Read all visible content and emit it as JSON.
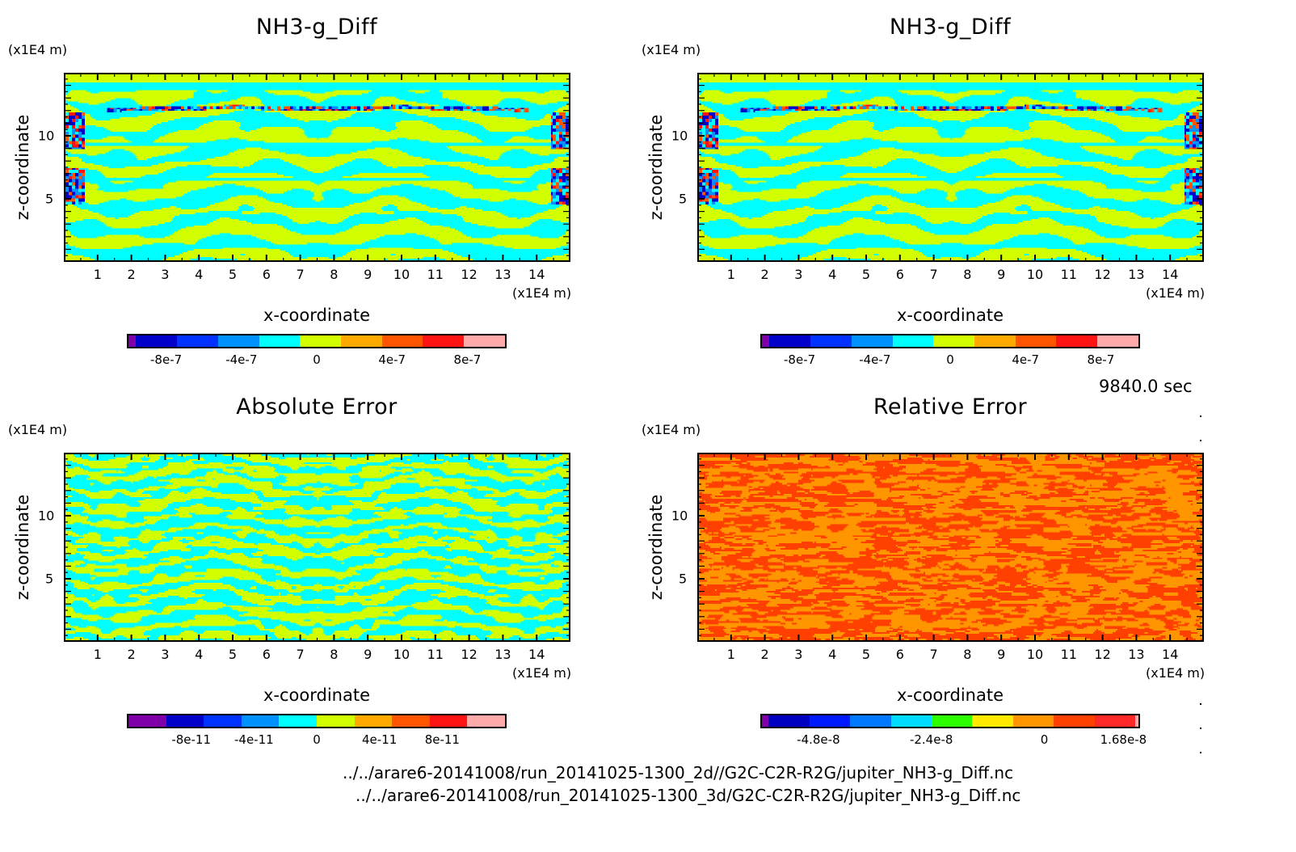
{
  "figure": {
    "time_label": "9840.0 sec",
    "file_paths": [
      "../../arare6-20141008/run_20141025-1300_2d//G2C-C2R-R2G/jupiter_NH3-g_Diff.nc",
      "../../arare6-20141008/run_20141025-1300_3d/G2C-C2R-R2G/jupiter_NH3-g_Diff.nc"
    ]
  },
  "chart_data": [
    {
      "type": "heatmap",
      "id": "top-left",
      "title": "NH3-g_Diff",
      "xlabel": "x-coordinate",
      "ylabel": "z-coordinate",
      "x_units": "(x1E4 m)",
      "y_units": "(x1E4 m)",
      "xlim": [
        0,
        15
      ],
      "ylim": [
        0,
        15
      ],
      "x_ticks": [
        "1",
        "2",
        "3",
        "4",
        "5",
        "6",
        "7",
        "8",
        "9",
        "10",
        "11",
        "12",
        "13",
        "14"
      ],
      "y_ticks": [
        "5",
        "10"
      ],
      "field_pattern": "wave",
      "value_range_visible": [
        -1e-07,
        1e-07
      ],
      "colorbar": {
        "labels": [
          "-8e-7",
          "-4e-7",
          "0",
          "4e-7",
          "8e-7"
        ],
        "label_values": [
          -8e-07,
          -4e-07,
          0,
          4e-07,
          8e-07
        ],
        "range": [
          -1e-06,
          1e-06
        ],
        "bins": [
          {
            "from": -1e-06,
            "to": -9.5e-07,
            "color": "#7f00a8"
          },
          {
            "from": -9.5e-07,
            "to": -7.5e-07,
            "color": "#0000c8"
          },
          {
            "from": -7.5e-07,
            "to": -5.5e-07,
            "color": "#0032ff"
          },
          {
            "from": -5.5e-07,
            "to": -3.5e-07,
            "color": "#0091ff"
          },
          {
            "from": -3.5e-07,
            "to": -1.5e-07,
            "color": "#00ffff"
          },
          {
            "from": -1.5e-07,
            "to": 5e-08,
            "color": "#d2ff00"
          },
          {
            "from": 5e-08,
            "to": 2.5e-07,
            "color": "#ffaa00"
          },
          {
            "from": 2.5e-07,
            "to": 4.5e-07,
            "color": "#ff5500"
          },
          {
            "from": 4.5e-07,
            "to": 6.5e-07,
            "color": "#ff1414"
          },
          {
            "from": 6.5e-07,
            "to": 8.5e-07,
            "color": "#ffaaaa"
          }
        ]
      }
    },
    {
      "type": "heatmap",
      "id": "top-right",
      "title": "NH3-g_Diff",
      "xlabel": "x-coordinate",
      "ylabel": "z-coordinate",
      "x_units": "(x1E4 m)",
      "y_units": "(x1E4 m)",
      "xlim": [
        0,
        15
      ],
      "ylim": [
        0,
        15
      ],
      "x_ticks": [
        "1",
        "2",
        "3",
        "4",
        "5",
        "6",
        "7",
        "8",
        "9",
        "10",
        "11",
        "12",
        "13",
        "14"
      ],
      "y_ticks": [
        "5",
        "10"
      ],
      "field_pattern": "wave",
      "value_range_visible": [
        -1e-07,
        1e-07
      ],
      "colorbar": {
        "labels": [
          "-8e-7",
          "-4e-7",
          "0",
          "4e-7",
          "8e-7"
        ],
        "label_values": [
          -8e-07,
          -4e-07,
          0,
          4e-07,
          8e-07
        ],
        "range": [
          -1e-06,
          1e-06
        ],
        "bins": [
          {
            "from": -1e-06,
            "to": -9.5e-07,
            "color": "#7f00a8"
          },
          {
            "from": -9.5e-07,
            "to": -7.5e-07,
            "color": "#0000c8"
          },
          {
            "from": -7.5e-07,
            "to": -5.5e-07,
            "color": "#0032ff"
          },
          {
            "from": -5.5e-07,
            "to": -3.5e-07,
            "color": "#0091ff"
          },
          {
            "from": -3.5e-07,
            "to": -1.5e-07,
            "color": "#00ffff"
          },
          {
            "from": -1.5e-07,
            "to": 5e-08,
            "color": "#d2ff00"
          },
          {
            "from": 5e-08,
            "to": 2.5e-07,
            "color": "#ffaa00"
          },
          {
            "from": 2.5e-07,
            "to": 4.5e-07,
            "color": "#ff5500"
          },
          {
            "from": 4.5e-07,
            "to": 6.5e-07,
            "color": "#ff1414"
          },
          {
            "from": 6.5e-07,
            "to": 8.5e-07,
            "color": "#ffaaaa"
          }
        ]
      }
    },
    {
      "type": "heatmap",
      "id": "bottom-left",
      "title": "Absolute Error",
      "xlabel": "x-coordinate",
      "ylabel": "z-coordinate",
      "x_units": "(x1E4 m)",
      "y_units": "(x1E4 m)",
      "xlim": [
        0,
        15
      ],
      "ylim": [
        0,
        15
      ],
      "x_ticks": [
        "1",
        "2",
        "3",
        "4",
        "5",
        "6",
        "7",
        "8",
        "9",
        "10",
        "11",
        "12",
        "13",
        "14"
      ],
      "y_ticks": [
        "5",
        "10"
      ],
      "field_pattern": "noise",
      "colorbar": {
        "labels": [
          "-8e-11",
          "-4e-11",
          "0",
          "4e-11",
          "8e-11"
        ],
        "label_values": [
          -8e-11,
          -4e-11,
          0,
          4e-11,
          8e-11
        ],
        "range": [
          -1.2e-10,
          1.2e-10
        ],
        "bins": [
          {
            "color": "#7f00a8"
          },
          {
            "color": "#0000c8"
          },
          {
            "color": "#0032ff"
          },
          {
            "color": "#0091ff"
          },
          {
            "color": "#00ffff"
          },
          {
            "color": "#d2ff00"
          },
          {
            "color": "#ffaa00"
          },
          {
            "color": "#ff5500"
          },
          {
            "color": "#ff1414"
          },
          {
            "color": "#ffaaaa"
          }
        ]
      }
    },
    {
      "type": "heatmap",
      "id": "bottom-right",
      "title": "Relative Error",
      "xlabel": "x-coordinate",
      "ylabel": "z-coordinate",
      "x_units": "(x1E4 m)",
      "y_units": "(x1E4 m)",
      "xlim": [
        0,
        15
      ],
      "ylim": [
        0,
        15
      ],
      "x_ticks": [
        "1",
        "2",
        "3",
        "4",
        "5",
        "6",
        "7",
        "8",
        "9",
        "10",
        "11",
        "12",
        "13",
        "14"
      ],
      "y_ticks": [
        "5",
        "10"
      ],
      "field_pattern": "rel",
      "colorbar": {
        "labels": [
          "-4.8e-8",
          "-2.4e-8",
          "0",
          "1.68e-8"
        ],
        "label_values": [
          -4.8e-08,
          -2.4e-08,
          0,
          1.68e-08
        ],
        "range": [
          -6e-08,
          2e-08
        ],
        "bins": [
          {
            "color": "#7f00a8"
          },
          {
            "color": "#0000c0"
          },
          {
            "color": "#001aff"
          },
          {
            "color": "#0078ff"
          },
          {
            "color": "#00dcff"
          },
          {
            "color": "#2dff00"
          },
          {
            "color": "#ffea00"
          },
          {
            "color": "#ff9600"
          },
          {
            "color": "#ff4000"
          },
          {
            "color": "#ff2828"
          },
          {
            "color": "#ffaaaa"
          }
        ]
      }
    }
  ]
}
